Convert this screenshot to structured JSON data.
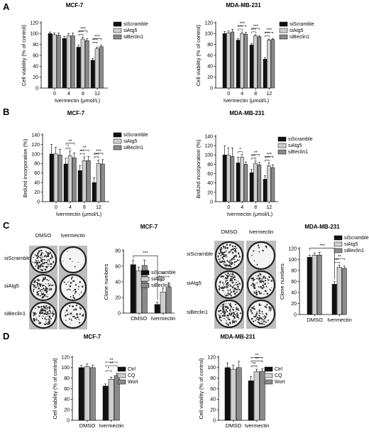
{
  "panel_labels": [
    "A",
    "B",
    "C",
    "D"
  ],
  "colors": {
    "black": "#111111",
    "light": "#cfcfcf",
    "mid": "#8a8a8a",
    "white": "#ffffff"
  },
  "clone_images": {
    "col_labels": [
      "DMSO",
      "Ivermectin"
    ],
    "row_labels": [
      "siScramble",
      "siAtg5",
      "siBeclin1"
    ]
  },
  "chart_data": [
    {
      "id": "A-left",
      "type": "bar",
      "title": "MCF-7",
      "categories": [
        "0",
        "4",
        "8",
        "12"
      ],
      "xlabel": "Ivermectin (μmol/L)",
      "ylabel": "Cell viability (% of control)",
      "ylim": [
        0,
        120
      ],
      "yticks": [
        0,
        20,
        40,
        60,
        80,
        100,
        120
      ],
      "legend": "top-right",
      "series": [
        {
          "name": "siScramble",
          "color": "black",
          "values": [
            100,
            91,
            75,
            51
          ],
          "err": [
            3,
            4,
            4,
            3
          ]
        },
        {
          "name": "siAtg5",
          "color": "light",
          "values": [
            98,
            96,
            90,
            72
          ],
          "err": [
            3,
            4,
            3,
            3
          ]
        },
        {
          "name": "siBeclin1",
          "color": "mid",
          "values": [
            97,
            96,
            87,
            76
          ],
          "err": [
            4,
            5,
            4,
            3
          ]
        }
      ],
      "significance": [
        {
          "cat": 2,
          "text": "***",
          "tiers": 2
        },
        {
          "cat": 3,
          "text": "***",
          "tiers": 2
        }
      ]
    },
    {
      "id": "A-right",
      "type": "bar",
      "title": "MDA-MB-231",
      "categories": [
        "0",
        "4",
        "8",
        "12"
      ],
      "xlabel": "Ivermectin (μmol/L)",
      "ylabel": "Cell viability (% of control)",
      "ylim": [
        0,
        120
      ],
      "yticks": [
        0,
        20,
        40,
        60,
        80,
        100,
        120
      ],
      "legend": "top-right",
      "series": [
        {
          "name": "siScramble",
          "color": "black",
          "values": [
            100,
            88,
            79,
            53
          ],
          "err": [
            4,
            3,
            3,
            3
          ]
        },
        {
          "name": "siAtg5",
          "color": "light",
          "values": [
            101,
            100,
            96,
            88
          ],
          "err": [
            4,
            3,
            2,
            2
          ]
        },
        {
          "name": "siBeclin1",
          "color": "mid",
          "values": [
            103,
            99,
            94,
            89
          ],
          "err": [
            5,
            3,
            2,
            2
          ]
        }
      ],
      "significance": [
        {
          "cat": 1,
          "text": "***",
          "tiers": 2
        },
        {
          "cat": 2,
          "text": "***",
          "tiers": 2
        },
        {
          "cat": 3,
          "text": "***",
          "tiers": 2
        }
      ]
    },
    {
      "id": "B-left",
      "type": "bar",
      "title": "MCF-7",
      "categories": [
        "0",
        "4",
        "8",
        "12"
      ],
      "xlabel": "Ivermectin (μmol/L)",
      "ylabel": "BrdUrd incorporation (%)",
      "ylim": [
        0,
        140
      ],
      "yticks": [
        0,
        20,
        40,
        60,
        80,
        100,
        120,
        140
      ],
      "legend": "top-right",
      "series": [
        {
          "name": "siScramble",
          "color": "black",
          "values": [
            100,
            79,
            65,
            40
          ],
          "err": [
            20,
            12,
            10,
            10
          ]
        },
        {
          "name": "siAtg5",
          "color": "light",
          "values": [
            100,
            96,
            86,
            80
          ],
          "err": [
            14,
            10,
            8,
            7
          ]
        },
        {
          "name": "siBeclin1",
          "color": "mid",
          "values": [
            98,
            92,
            86,
            79
          ],
          "err": [
            12,
            10,
            9,
            9
          ]
        }
      ],
      "significance": [
        {
          "cat": 1,
          "text": "*",
          "tiers": 1
        },
        {
          "cat": 1,
          "text": "**",
          "tiers": 1,
          "level": 2
        },
        {
          "cat": 2,
          "text": "**",
          "tiers": 2
        },
        {
          "cat": 3,
          "text": "***",
          "tiers": 2
        }
      ]
    },
    {
      "id": "B-right",
      "type": "bar",
      "title": "MDA-MB-231",
      "categories": [
        "0",
        "4",
        "8",
        "12"
      ],
      "xlabel": "Ivermectin (μmol/L)",
      "ylabel": "BrdUrd incorporation (%)",
      "ylim": [
        0,
        140
      ],
      "yticks": [
        0,
        20,
        40,
        60,
        80,
        100,
        120,
        140
      ],
      "legend": "top-right",
      "series": [
        {
          "name": "siScramble",
          "color": "black",
          "values": [
            100,
            83,
            62,
            48
          ],
          "err": [
            20,
            12,
            7,
            8
          ]
        },
        {
          "name": "siAtg5",
          "color": "light",
          "values": [
            100,
            95,
            82,
            77
          ],
          "err": [
            15,
            6,
            5,
            6
          ]
        },
        {
          "name": "siBeclin1",
          "color": "mid",
          "values": [
            97,
            80,
            79,
            73
          ],
          "err": [
            18,
            5,
            5,
            6
          ]
        }
      ],
      "significance": [
        {
          "cat": 1,
          "text": "*",
          "tiers": 1
        },
        {
          "cat": 2,
          "text": "**",
          "tiers": 2
        },
        {
          "cat": 3,
          "text": "***",
          "tiers": 2
        }
      ]
    },
    {
      "id": "C-left",
      "type": "bar",
      "title": "MCF-7",
      "categories": [
        "DMSO",
        "Ivermectin"
      ],
      "xlabel": "",
      "ylabel": "Clone numbers",
      "ylim": [
        0,
        80
      ],
      "yticks": [
        0,
        20,
        40,
        60,
        80
      ],
      "legend": "center-right",
      "series": [
        {
          "name": "siScramble",
          "color": "black",
          "values": [
            62,
            11
          ],
          "err": [
            6,
            3
          ]
        },
        {
          "name": "siAtg5",
          "color": "light",
          "values": [
            54,
            27
          ],
          "err": [
            5,
            5
          ]
        },
        {
          "name": "siBeclin1",
          "color": "mid",
          "values": [
            61,
            33
          ],
          "err": [
            7,
            6
          ]
        }
      ],
      "significance": [
        {
          "text": "***",
          "from_cat": 0,
          "to_cat": 1
        },
        {
          "cat": 1,
          "text": "**",
          "tiers": 2
        }
      ]
    },
    {
      "id": "C-right",
      "type": "bar",
      "title": "MDA-MB-231",
      "categories": [
        "DMSO",
        "Ivermectin"
      ],
      "xlabel": "",
      "ylabel": "Clone numbers",
      "ylim": [
        0,
        120
      ],
      "yticks": [
        0,
        20,
        40,
        60,
        80,
        100,
        120
      ],
      "legend": "top-right",
      "series": [
        {
          "name": "siScramble",
          "color": "black",
          "values": [
            104,
            55
          ],
          "err": [
            4,
            5
          ]
        },
        {
          "name": "siAtg5",
          "color": "light",
          "values": [
            108,
            86
          ],
          "err": [
            4,
            4
          ]
        },
        {
          "name": "siBeclin1",
          "color": "mid",
          "values": [
            108,
            84
          ],
          "err": [
            5,
            4
          ]
        }
      ],
      "significance": [
        {
          "text": "***",
          "from_cat": 0,
          "to_cat": 1
        },
        {
          "cat": 1,
          "text": "**",
          "tiers": 2
        }
      ]
    },
    {
      "id": "D-left",
      "type": "bar",
      "title": "MCF-7",
      "categories": [
        "DMSO",
        "Ivermectin"
      ],
      "xlabel": "",
      "ylabel": "Cell viability (% of control)",
      "ylim": [
        0,
        120
      ],
      "yticks": [
        0,
        20,
        40,
        60,
        80,
        100,
        120
      ],
      "legend": "center-right",
      "series": [
        {
          "name": "Ctrl",
          "color": "black",
          "values": [
            100,
            65
          ],
          "err": [
            4,
            4
          ]
        },
        {
          "name": "CQ",
          "color": "light",
          "values": [
            102,
            78
          ],
          "err": [
            5,
            4
          ]
        },
        {
          "name": "Wort",
          "color": "mid",
          "values": [
            100,
            85
          ],
          "err": [
            5,
            4
          ]
        }
      ],
      "significance": [
        {
          "cat": 1,
          "text": "*",
          "tiers": 1
        },
        {
          "cat": 1,
          "text": "**",
          "tiers": 2,
          "level": 2
        }
      ]
    },
    {
      "id": "D-right",
      "type": "bar",
      "title": "MDA-MB-231",
      "categories": [
        "DMSO",
        "Ivermectin"
      ],
      "xlabel": "",
      "ylabel": "Cell viability (% of control)",
      "ylim": [
        0,
        120
      ],
      "yticks": [
        0,
        20,
        40,
        60,
        80,
        100,
        120
      ],
      "legend": "center-right",
      "series": [
        {
          "name": "Ctrl",
          "color": "black",
          "values": [
            100,
            75
          ],
          "err": [
            9,
            8
          ]
        },
        {
          "name": "CQ",
          "color": "light",
          "values": [
            97,
            92
          ],
          "err": [
            8,
            5
          ]
        },
        {
          "name": "Wort",
          "color": "mid",
          "values": [
            100,
            93
          ],
          "err": [
            12,
            5
          ]
        }
      ],
      "significance": [
        {
          "cat": 1,
          "text": "**",
          "tiers": 1
        },
        {
          "cat": 1,
          "text": "**",
          "tiers": 2,
          "level": 2
        }
      ]
    }
  ]
}
